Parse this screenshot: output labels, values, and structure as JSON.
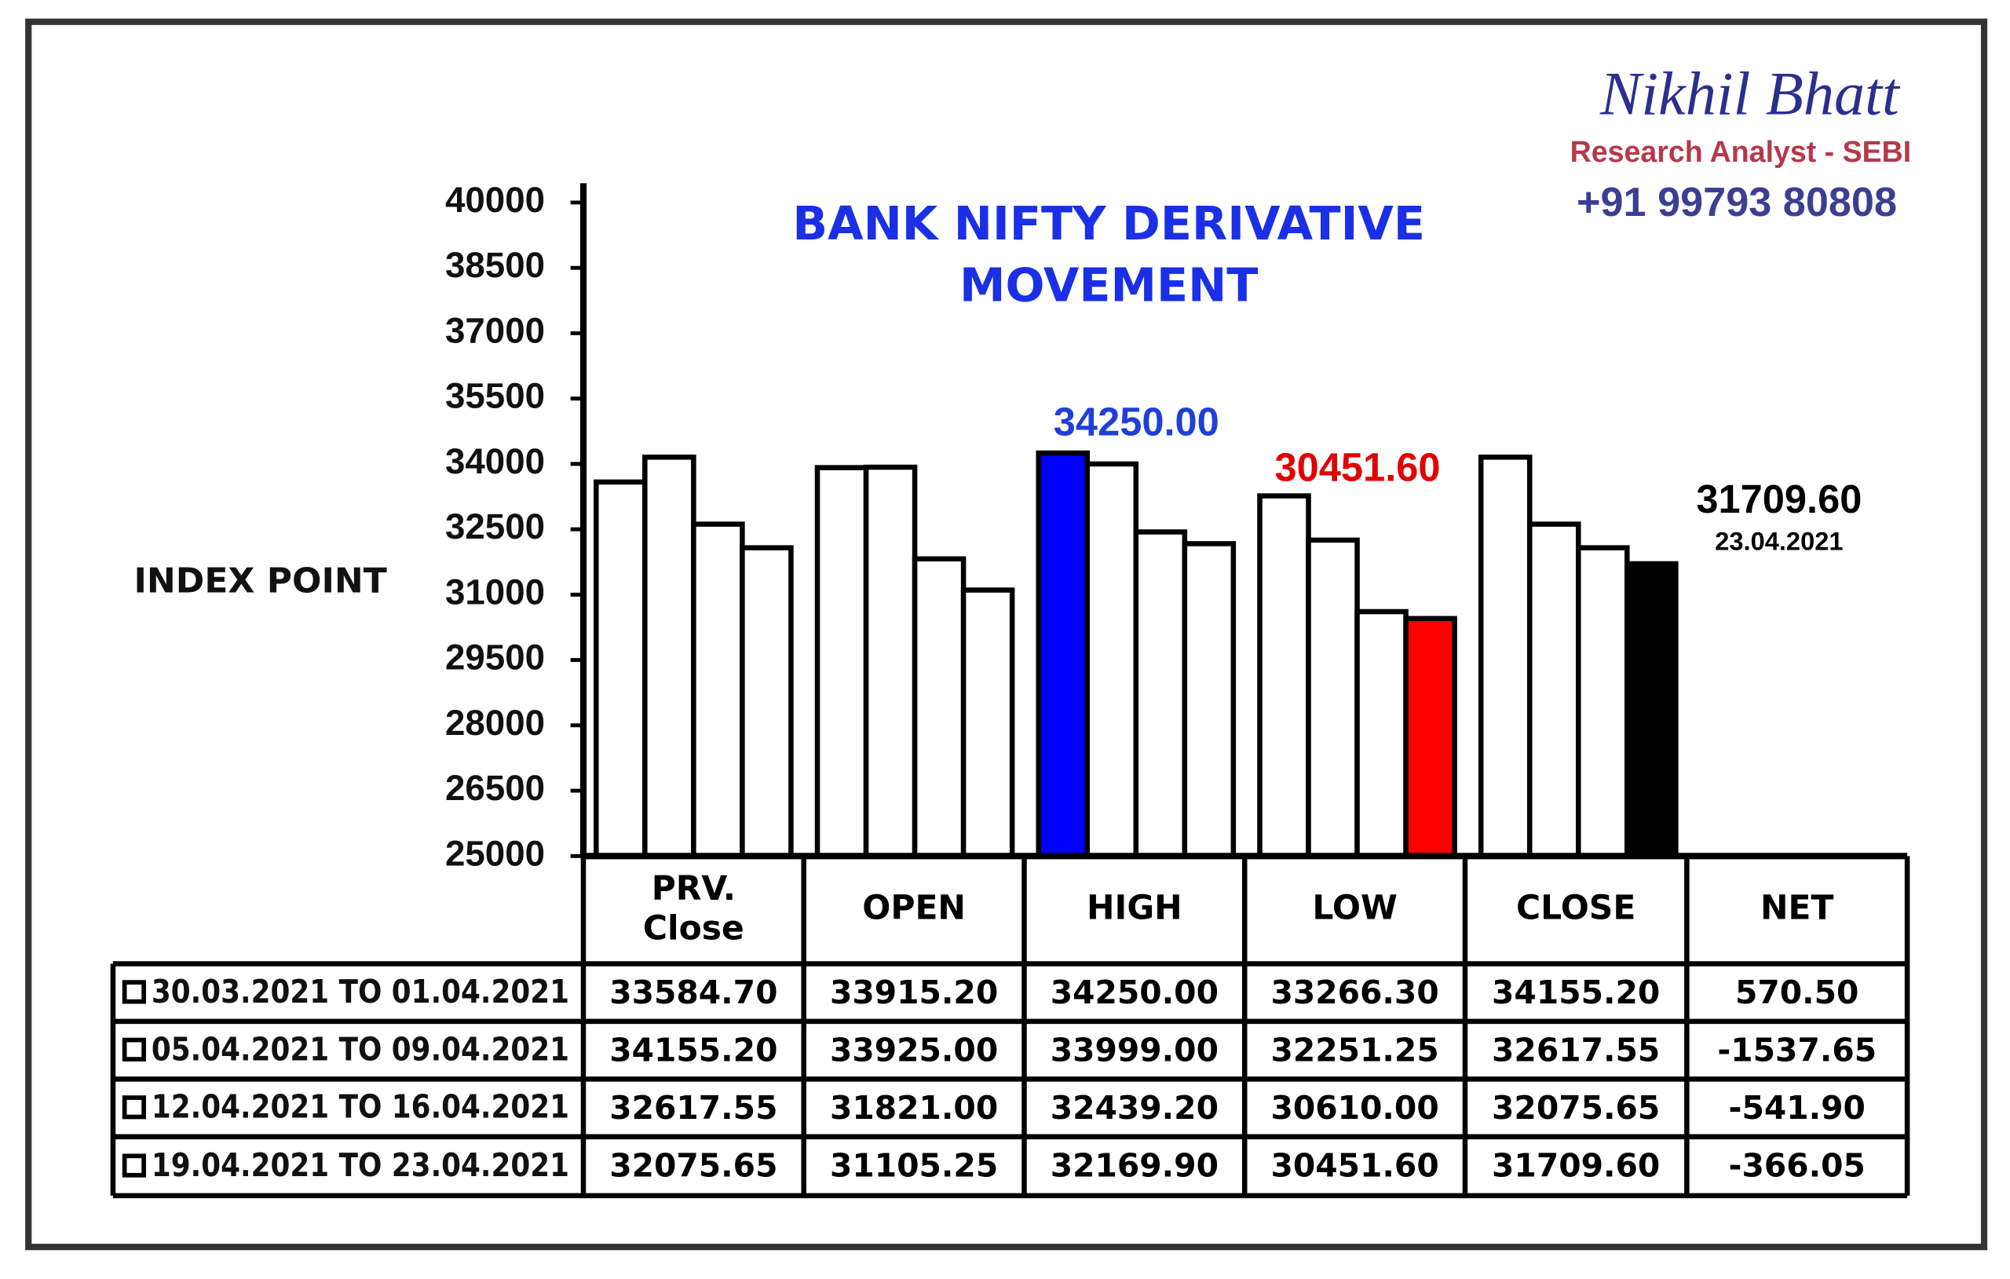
{
  "chart_data": {
    "type": "bar",
    "title": "BANK NIFTY DERIVATIVE MOVEMENT",
    "y_label": "INDEX POINT",
    "brand": {
      "name": "Nikhil Bhatt",
      "role": "Research Analyst - SEBI",
      "phone": "+91 99793 80808"
    },
    "categories": [
      "PRV. Close",
      "OPEN",
      "HIGH",
      "LOW",
      "CLOSE"
    ],
    "net_header": "NET",
    "ylim": [
      25000,
      40000
    ],
    "yticks": [
      25000,
      26500,
      28000,
      29500,
      31000,
      32500,
      34000,
      35500,
      37000,
      38500,
      40000
    ],
    "grid": false,
    "series": [
      {
        "name": "30.03.2021 TO 01.04.2021",
        "colors": [
          "#ffffff",
          "#ffffff",
          "#0000ff",
          "#ffffff",
          "#ffffff"
        ],
        "values": [
          33584.7,
          33915.2,
          34250,
          33266.3,
          34155.2
        ],
        "value_labels": [
          "33584.70",
          "33915.20",
          "34250.00",
          "33266.30",
          "34155.20"
        ],
        "net": "570.50"
      },
      {
        "name": "05.04.2021 TO 09.04.2021",
        "colors": [
          "#ffffff",
          "#ffffff",
          "#ffffff",
          "#ffffff",
          "#ffffff"
        ],
        "values": [
          34155.2,
          33925,
          33999,
          32251.25,
          32617.55
        ],
        "value_labels": [
          "34155.20",
          "33925.00",
          "33999.00",
          "32251.25",
          "32617.55"
        ],
        "net": "-1537.65"
      },
      {
        "name": "12.04.2021 TO 16.04.2021",
        "colors": [
          "#ffffff",
          "#ffffff",
          "#ffffff",
          "#ffffff",
          "#ffffff"
        ],
        "values": [
          32617.55,
          31821,
          32439.2,
          30610,
          32075.65
        ],
        "value_labels": [
          "32617.55",
          "31821.00",
          "32439.20",
          "30610.00",
          "32075.65"
        ],
        "net": "-541.90"
      },
      {
        "name": "19.04.2021 TO 23.04.2021",
        "colors": [
          "#ffffff",
          "#ffffff",
          "#ffffff",
          "#ff0000",
          "#000000"
        ],
        "values": [
          32075.65,
          31105.25,
          32169.9,
          30451.6,
          31709.6
        ],
        "value_labels": [
          "32075.65",
          "31105.25",
          "32169.90",
          "30451.60",
          "31709.60"
        ],
        "net": "-366.05"
      }
    ],
    "annotations": [
      {
        "text": "34250.00",
        "color": "#1f3fd8"
      },
      {
        "text": "30451.60",
        "color": "#e00000"
      },
      {
        "text": "31709.60",
        "subtext": "23.04.2021",
        "color": "#000000"
      }
    ]
  }
}
